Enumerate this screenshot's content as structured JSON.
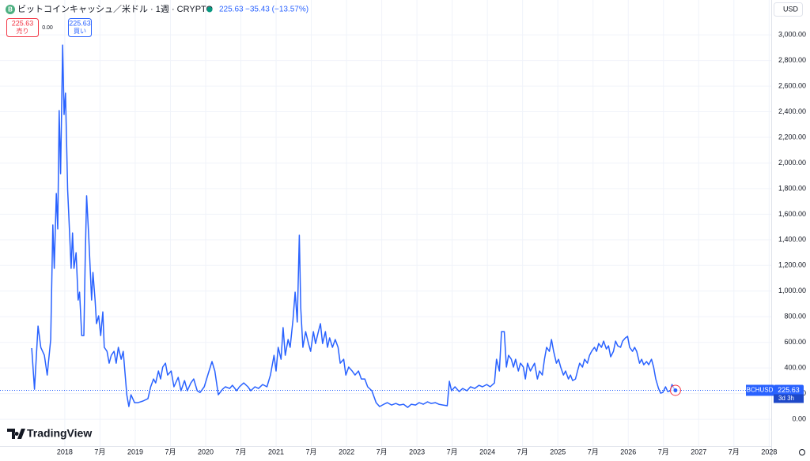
{
  "header": {
    "symbol_title": "ビットコインキャッシュ／米ドル · 1週 · CRYPTO",
    "last": 225.63,
    "change": "−35.43 (−13.57%)"
  },
  "trade_panel": {
    "sell_price": 225.63,
    "sell_label": "売り",
    "spread": "0.00",
    "buy_price": 225.63,
    "buy_label": "買い"
  },
  "currency": "USD",
  "price_tag": {
    "symbol": "BCHUSD",
    "price": 225.63,
    "countdown": "3d 3h"
  },
  "brand": "TradingView",
  "chart_data": {
    "type": "line",
    "color": "#2962ff",
    "grid": true,
    "xlim": [
      2017.08,
      2028.03
    ],
    "ylim": [
      -209,
      3272
    ],
    "xticks": [
      2018,
      {
        "value": 2018.5,
        "label": "7月"
      },
      2019,
      {
        "value": 2019.5,
        "label": "7月"
      },
      2020,
      {
        "value": 2020.5,
        "label": "7月"
      },
      2021,
      {
        "value": 2021.5,
        "label": "7月"
      },
      2022,
      {
        "value": 2022.5,
        "label": "7月"
      },
      2023,
      {
        "value": 2023.5,
        "label": "7月"
      },
      2024,
      {
        "value": 2024.5,
        "label": "7月"
      },
      2025,
      {
        "value": 2025.5,
        "label": "7月"
      },
      2026,
      {
        "value": 2026.5,
        "label": "7月"
      },
      2027,
      {
        "value": 2027.5,
        "label": "7月"
      },
      2028
    ],
    "yticks": [
      {
        "value": 0,
        "label": "0.00"
      },
      {
        "value": 200,
        "label": "200.00"
      },
      {
        "value": 400,
        "label": "400.00"
      },
      {
        "value": 600,
        "label": "600.00"
      },
      {
        "value": 800,
        "label": "800.00"
      },
      {
        "value": 1000,
        "label": "1,000.00"
      },
      {
        "value": 1200,
        "label": "1,200.00"
      },
      {
        "value": 1400,
        "label": "1,400.00"
      },
      {
        "value": 1600,
        "label": "1,600.00"
      },
      {
        "value": 1800,
        "label": "1,800.00"
      },
      {
        "value": 2000,
        "label": "2,000.00"
      },
      {
        "value": 2200,
        "label": "2,200.00"
      },
      {
        "value": 2400,
        "label": "2,400.00"
      },
      {
        "value": 2600,
        "label": "2,600.00"
      },
      {
        "value": 2800,
        "label": "2,800.00"
      },
      {
        "value": 3000,
        "label": "3,000.00"
      }
    ],
    "x": [
      2017.53,
      2017.57,
      2017.62,
      2017.66,
      2017.71,
      2017.75,
      2017.8,
      2017.83,
      2017.85,
      2017.88,
      2017.9,
      2017.92,
      2017.94,
      2017.97,
      2017.99,
      2018.01,
      2018.04,
      2018.07,
      2018.09,
      2018.11,
      2018.13,
      2018.16,
      2018.19,
      2018.21,
      2018.24,
      2018.27,
      2018.29,
      2018.31,
      2018.34,
      2018.36,
      2018.38,
      2018.4,
      2018.43,
      2018.45,
      2018.48,
      2018.51,
      2018.54,
      2018.56,
      2018.6,
      2018.63,
      2018.66,
      2018.7,
      2018.73,
      2018.76,
      2018.8,
      2018.83,
      2018.88,
      2018.91,
      2018.94,
      2018.99,
      2019.04,
      2019.11,
      2019.18,
      2019.22,
      2019.26,
      2019.29,
      2019.33,
      2019.36,
      2019.39,
      2019.43,
      2019.46,
      2019.51,
      2019.55,
      2019.61,
      2019.65,
      2019.7,
      2019.74,
      2019.79,
      2019.83,
      2019.88,
      2019.92,
      2019.98,
      2020.03,
      2020.09,
      2020.13,
      2020.18,
      2020.24,
      2020.28,
      2020.34,
      2020.38,
      2020.44,
      2020.48,
      2020.54,
      2020.6,
      2020.64,
      2020.7,
      2020.75,
      2020.81,
      2020.87,
      2020.92,
      2020.97,
      2021.0,
      2021.03,
      2021.07,
      2021.1,
      2021.13,
      2021.17,
      2021.2,
      2021.24,
      2021.27,
      2021.3,
      2021.33,
      2021.35,
      2021.38,
      2021.42,
      2021.46,
      2021.49,
      2021.53,
      2021.56,
      2021.6,
      2021.63,
      2021.66,
      2021.7,
      2021.73,
      2021.76,
      2021.8,
      2021.84,
      2021.88,
      2021.91,
      2021.96,
      2021.99,
      2022.03,
      2022.08,
      2022.12,
      2022.17,
      2022.21,
      2022.26,
      2022.3,
      2022.36,
      2022.42,
      2022.47,
      2022.53,
      2022.58,
      2022.64,
      2022.7,
      2022.75,
      2022.81,
      2022.87,
      2022.92,
      2022.98,
      2023.03,
      2023.09,
      2023.15,
      2023.2,
      2023.26,
      2023.31,
      2023.37,
      2023.43,
      2023.46,
      2023.49,
      2023.54,
      2023.6,
      2023.65,
      2023.71,
      2023.76,
      2023.82,
      2023.88,
      2023.93,
      2023.99,
      2024.04,
      2024.1,
      2024.13,
      2024.17,
      2024.2,
      2024.24,
      2024.27,
      2024.3,
      2024.34,
      2024.37,
      2024.4,
      2024.44,
      2024.47,
      2024.51,
      2024.54,
      2024.57,
      2024.61,
      2024.64,
      2024.67,
      2024.71,
      2024.74,
      2024.78,
      2024.81,
      2024.84,
      2024.88,
      2024.91,
      2024.94,
      2024.98,
      2025.01,
      2025.04,
      2025.08,
      2025.11,
      2025.15,
      2025.18,
      2025.21,
      2025.25,
      2025.28,
      2025.31,
      2025.35,
      2025.38,
      2025.42,
      2025.45,
      2025.48,
      2025.52,
      2025.55,
      2025.58,
      2025.62,
      2025.65,
      2025.69,
      2025.72,
      2025.75,
      2025.79,
      2025.82,
      2025.85,
      2025.89,
      2025.92,
      2025.96,
      2025.99,
      2026.02,
      2026.06,
      2026.09,
      2026.12,
      2026.16,
      2026.19,
      2026.22,
      2026.26,
      2026.29,
      2026.33,
      2026.36,
      2026.39,
      2026.43,
      2026.46,
      2026.49,
      2026.53,
      2026.56,
      2026.6,
      2026.62,
      2026.65,
      2026.67
    ],
    "values": [
      555,
      234,
      727,
      560,
      499,
      345,
      622,
      1516,
      1177,
      1762,
      1485,
      2409,
      1916,
      2920,
      2378,
      2545,
      1793,
      1423,
      1177,
      1454,
      1177,
      1300,
      930,
      992,
      653,
      653,
      1238,
      1744,
      1423,
      1177,
      930,
      1146,
      930,
      746,
      807,
      653,
      838,
      561,
      530,
      437,
      499,
      530,
      437,
      561,
      468,
      530,
      191,
      99,
      191,
      129,
      129,
      142,
      160,
      253,
      314,
      283,
      376,
      314,
      407,
      437,
      345,
      376,
      253,
      327,
      222,
      302,
      222,
      283,
      314,
      222,
      209,
      253,
      345,
      450,
      376,
      191,
      234,
      253,
      240,
      265,
      222,
      253,
      283,
      253,
      222,
      253,
      240,
      271,
      253,
      345,
      499,
      376,
      561,
      468,
      715,
      499,
      622,
      561,
      776,
      992,
      758,
      1436,
      869,
      561,
      684,
      591,
      530,
      684,
      591,
      684,
      746,
      591,
      684,
      561,
      635,
      561,
      622,
      561,
      437,
      468,
      345,
      407,
      376,
      345,
      376,
      314,
      314,
      253,
      222,
      129,
      99,
      117,
      129,
      111,
      123,
      111,
      117,
      92,
      117,
      111,
      129,
      117,
      136,
      123,
      129,
      117,
      111,
      105,
      296,
      222,
      253,
      216,
      240,
      222,
      253,
      240,
      265,
      253,
      271,
      253,
      283,
      468,
      376,
      684,
      684,
      407,
      499,
      468,
      407,
      468,
      376,
      437,
      407,
      314,
      437,
      376,
      407,
      437,
      314,
      376,
      345,
      468,
      561,
      530,
      622,
      530,
      437,
      468,
      407,
      345,
      376,
      314,
      345,
      302,
      314,
      376,
      437,
      407,
      468,
      437,
      499,
      530,
      561,
      530,
      591,
      561,
      610,
      548,
      573,
      487,
      530,
      610,
      573,
      561,
      610,
      635,
      647,
      561,
      530,
      561,
      530,
      437,
      468,
      425,
      450,
      425,
      468,
      407,
      314,
      240,
      203,
      209,
      253,
      216,
      222,
      271,
      240,
      225.63
    ]
  }
}
